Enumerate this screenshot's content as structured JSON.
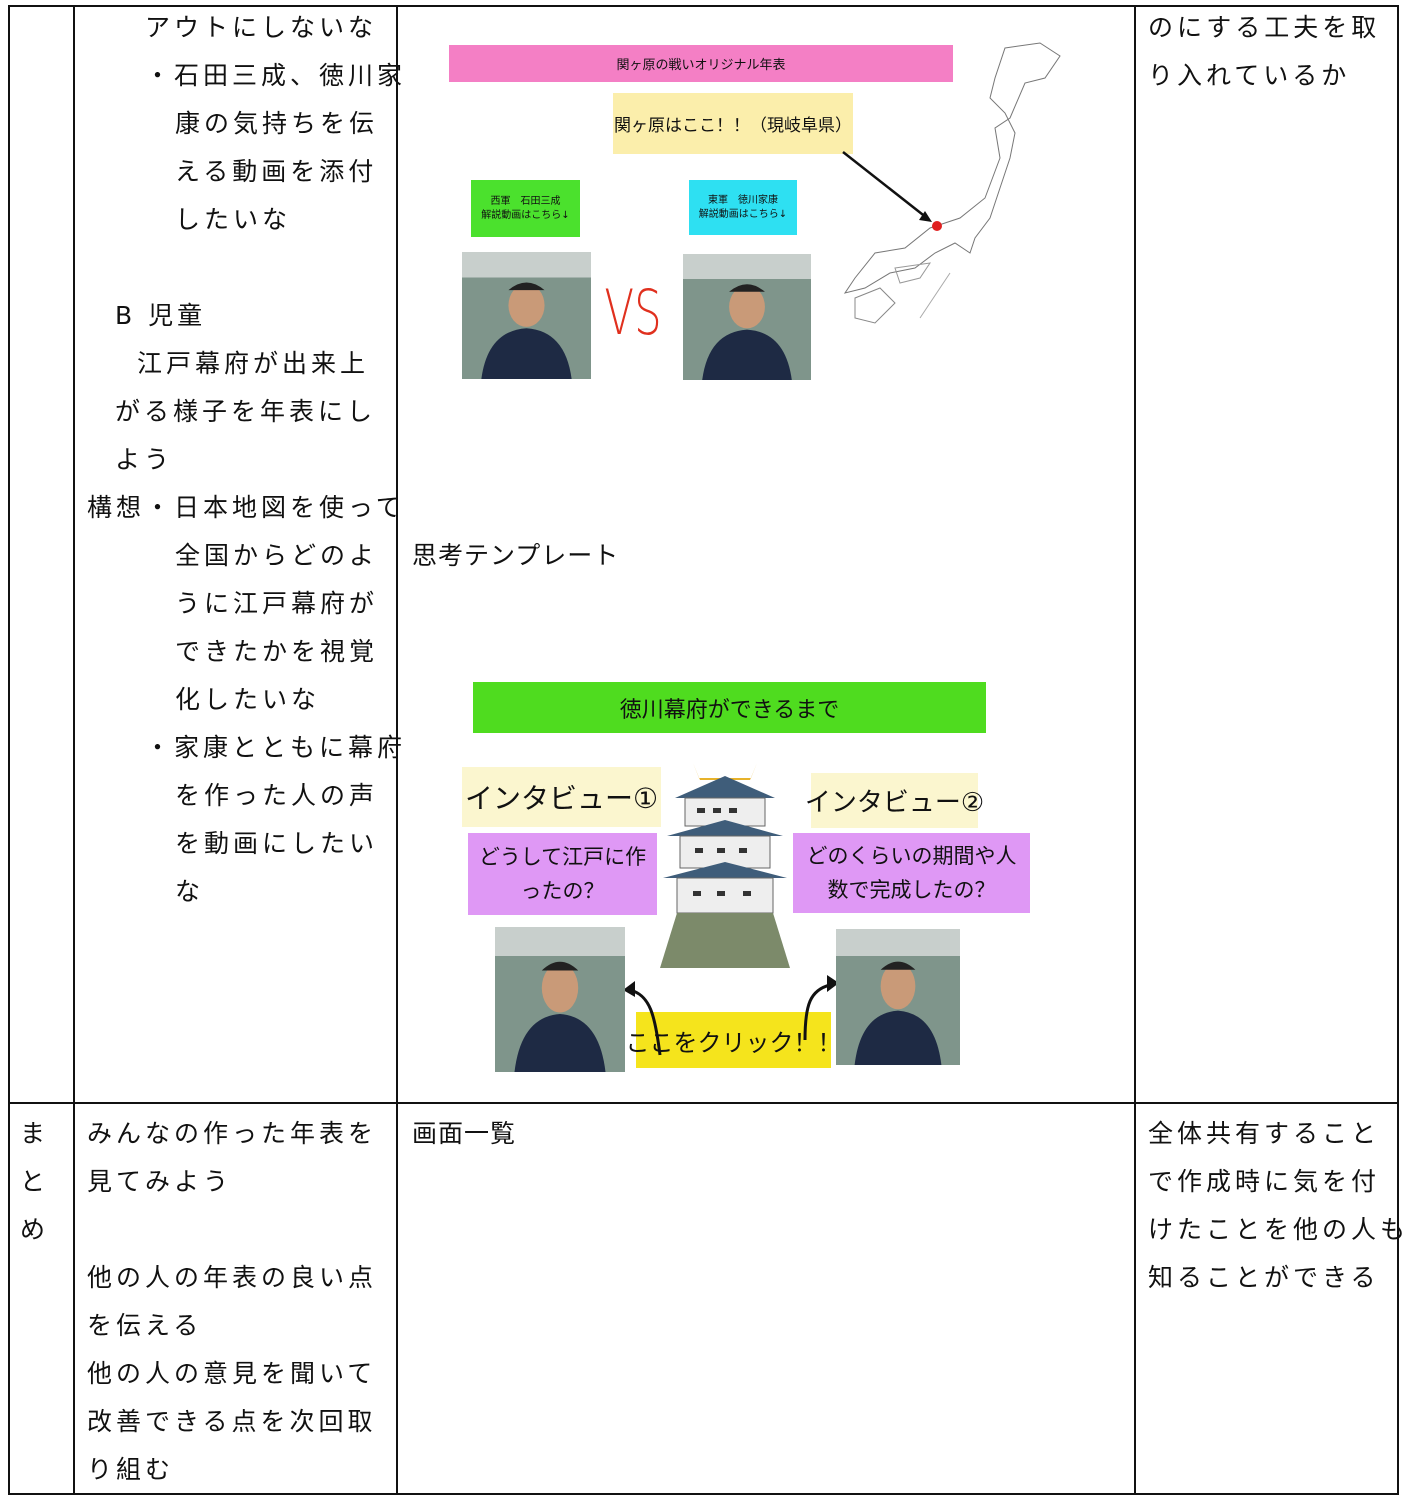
{
  "table": {
    "rows": [
      {
        "plan": [
          "アウトにしないな",
          "・石田三成、徳川家",
          "康の気持ちを伝",
          "える動画を添付",
          "したいな",
          "B 児童",
          "江戸幕府が出来上",
          "がる様子を年表にし",
          "よう",
          "構想・日本地図を使って",
          "全国からどのよ",
          "うに江戸幕府が",
          "できたかを視覚",
          "化したいな",
          "・家康とともに幕府",
          "を作った人の声",
          "を動画にしたい",
          "な"
        ],
        "template": {
          "label": "思考テンプレート",
          "slide1": {
            "title": "関ヶ原の戦いオリジナル年表",
            "location": "関ヶ原はここ！！（現岐阜県）",
            "west": [
              "西軍　石田三成",
              "解説動画はこちら↓"
            ],
            "east": [
              "東軍　徳川家康",
              "解説動画はこちら↓"
            ],
            "vs": "VS"
          },
          "slide2": {
            "title": "徳川幕府ができるまで",
            "interview1": "インタビュー①",
            "question1": [
              "どうして江戸に作",
              "ったの？"
            ],
            "interview2": "インタビュー②",
            "question2": [
              "どのくらいの期間や人",
              "数で完成したの？"
            ],
            "click": "ここをクリック！！"
          }
        },
        "evaluation": [
          "のにする工夫を取",
          "り入れているか"
        ]
      },
      {
        "stage": [
          "ま",
          "と",
          "め"
        ],
        "plan": [
          "みんなの作った年表を",
          "見てみよう",
          "他の人の年表の良い点",
          "を伝える",
          "他の人の意見を聞いて",
          "改善できる点を次回取",
          "り組む"
        ],
        "screen": "画面一覧",
        "evaluation": [
          "全体共有すること",
          "で作成時に気を付",
          "けたことを他の人も",
          "知ることができる"
        ]
      }
    ]
  }
}
